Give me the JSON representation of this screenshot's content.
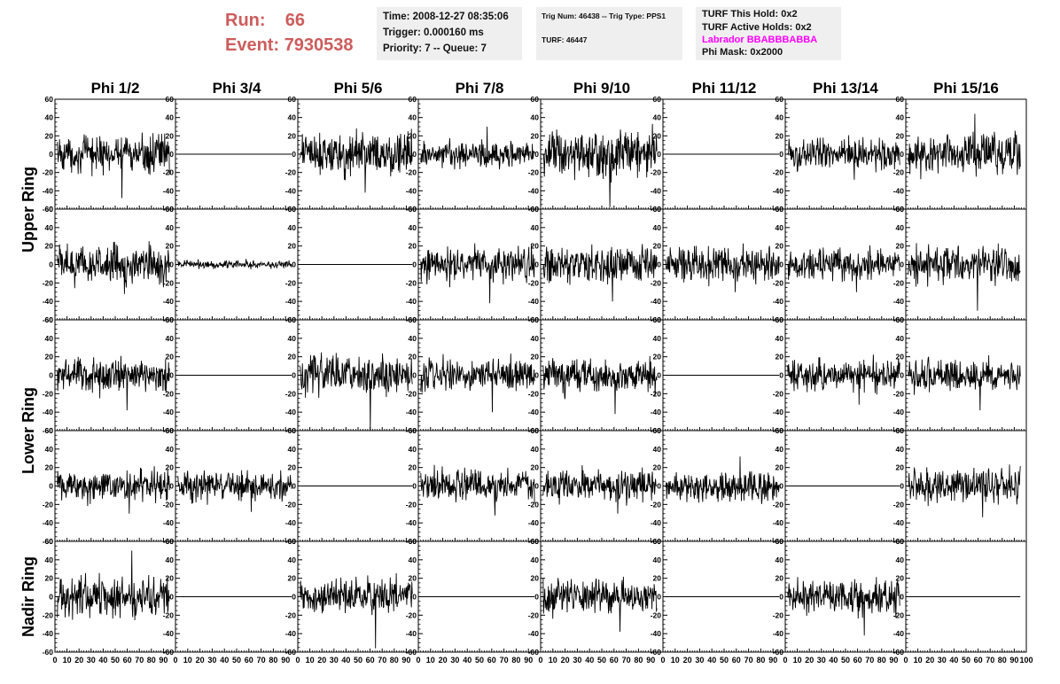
{
  "header": {
    "run_label": "Run:",
    "run_value": "66",
    "event_label": "Event:",
    "event_value": "7930538",
    "time": "Time: 2008-12-27 08:35:06",
    "trigger": "Trigger: 0.000160 ms",
    "priority": "Priority: 7 -- Queue: 7",
    "trig_num": "Trig Num: 46438 -- Trig Type: PPS1",
    "turf": "TURF: 46447",
    "turf_this_hold": "TURF This Hold: 0x2",
    "turf_active_holds": "TURF Active Holds: 0x2",
    "labrador": "Labrador BBABBBABBA",
    "phi_mask": "Phi Mask: 0x2000",
    "labrador_color": "#ff00ff",
    "runev_color": "#cd5c5c"
  },
  "chart_data": {
    "type": "line",
    "columns": [
      "Phi 1/2",
      "Phi 3/4",
      "Phi 5/6",
      "Phi 7/8",
      "Phi 9/10",
      "Phi 11/12",
      "Phi 13/14",
      "Phi 15/16"
    ],
    "row_groups": [
      {
        "label": "Upper Ring",
        "rows": [
          0,
          1
        ]
      },
      {
        "label": "Lower Ring",
        "rows": [
          2,
          3
        ]
      },
      {
        "label": "Nadir Ring",
        "rows": [
          4
        ]
      }
    ],
    "xlim": [
      0,
      100
    ],
    "ylim": [
      -60,
      60
    ],
    "xticks": [
      0,
      10,
      20,
      30,
      40,
      50,
      60,
      70,
      80,
      90,
      100
    ],
    "yticks": [
      -60,
      -40,
      -20,
      0,
      20,
      40,
      60
    ],
    "samples_per_trace": 260,
    "rows": [
      [
        {
          "amplitude": 12,
          "peak": -48
        },
        {
          "amplitude": 0,
          "peak": 0
        },
        {
          "amplitude": 14,
          "peak": -42
        },
        {
          "amplitude": 9,
          "peak": 30
        },
        {
          "amplitude": 16,
          "peak": -58
        },
        {
          "amplitude": 0,
          "peak": 0
        },
        {
          "amplitude": 10,
          "peak": -28
        },
        {
          "amplitude": 13,
          "peak": 44
        }
      ],
      [
        {
          "amplitude": 12,
          "peak": -32
        },
        {
          "amplitude": 2.5,
          "peak": 6
        },
        {
          "amplitude": 0,
          "peak": 0
        },
        {
          "amplitude": 12,
          "peak": -42
        },
        {
          "amplitude": 12,
          "peak": -40
        },
        {
          "amplitude": 11,
          "peak": -30
        },
        {
          "amplitude": 10,
          "peak": -30
        },
        {
          "amplitude": 12,
          "peak": -50
        }
      ],
      [
        {
          "amplitude": 11,
          "peak": -38
        },
        {
          "amplitude": 0,
          "peak": 0
        },
        {
          "amplitude": 14,
          "peak": -60
        },
        {
          "amplitude": 11,
          "peak": -40
        },
        {
          "amplitude": 12,
          "peak": -42
        },
        {
          "amplitude": 0,
          "peak": 0
        },
        {
          "amplitude": 10,
          "peak": -32
        },
        {
          "amplitude": 10,
          "peak": -38
        }
      ],
      [
        {
          "amplitude": 10,
          "peak": -30
        },
        {
          "amplitude": 10,
          "peak": -28
        },
        {
          "amplitude": 0,
          "peak": 0
        },
        {
          "amplitude": 11,
          "peak": -32
        },
        {
          "amplitude": 10,
          "peak": -30
        },
        {
          "amplitude": 10,
          "peak": 32
        },
        {
          "amplitude": 0,
          "peak": 0
        },
        {
          "amplitude": 11,
          "peak": -34
        }
      ],
      [
        {
          "amplitude": 13,
          "peak": 50
        },
        {
          "amplitude": 0,
          "peak": 0
        },
        {
          "amplitude": 11,
          "peak": -56
        },
        {
          "amplitude": 0,
          "peak": 0
        },
        {
          "amplitude": 11,
          "peak": -38
        },
        {
          "amplitude": 0,
          "peak": 0
        },
        {
          "amplitude": 11,
          "peak": -42
        },
        {
          "amplitude": 0,
          "peak": 0
        }
      ]
    ]
  }
}
